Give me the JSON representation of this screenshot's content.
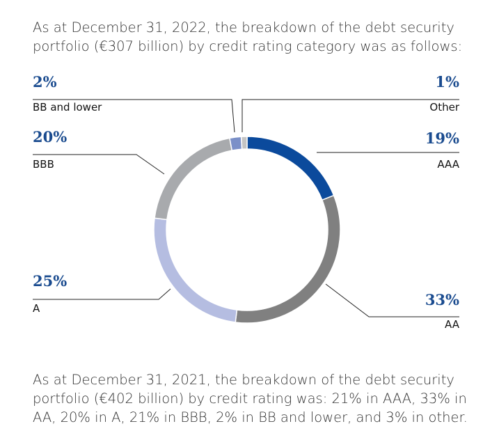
{
  "intro": "As at December 31, 2022, the breakdown of the debt security portfolio (€307 billion) by credit rating category was as follows:",
  "chart_data": {
    "type": "donut",
    "categories": [
      "AAA",
      "AA",
      "A",
      "BBB",
      "BB and lower",
      "Other"
    ],
    "values": [
      19,
      33,
      25,
      20,
      2,
      1
    ],
    "value_labels": [
      "19%",
      "33%",
      "25%",
      "20%",
      "2%",
      "1%"
    ],
    "colors": [
      "#0b4a9c",
      "#808080",
      "#b5bde1",
      "#a8aaad",
      "#7b90c8",
      "#c4c4c4"
    ]
  },
  "note": "As at December 31, 2021, the breakdown of the debt security portfolio (€402 billion) by credit rating was: 21% in AAA, 33% in AA, 20% in A, 21% in BBB, 2% in BB and lower, and 3% in other."
}
